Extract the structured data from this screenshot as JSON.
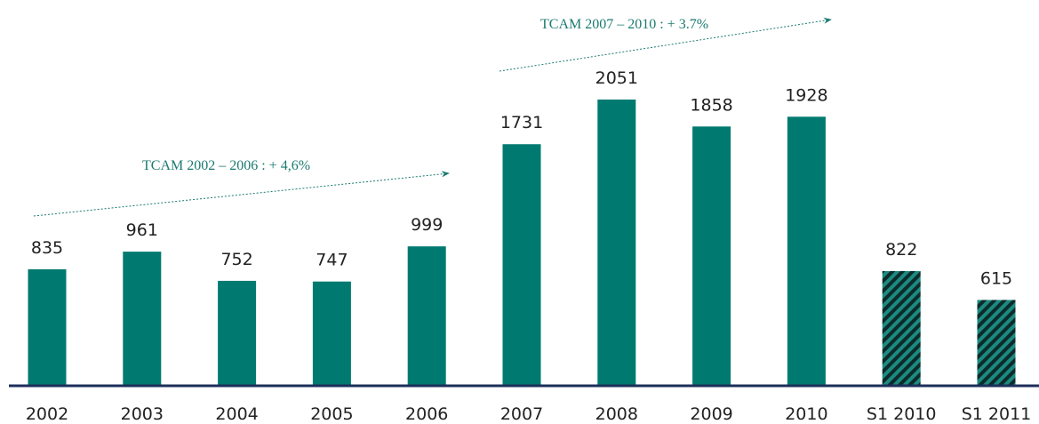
{
  "chart_data": {
    "type": "bar",
    "categories": [
      "2002",
      "2003",
      "2004",
      "2005",
      "2006",
      "2007",
      "2008",
      "2009",
      "2010",
      "S1 2010",
      "S1 2011"
    ],
    "values": [
      835,
      961,
      752,
      747,
      999,
      1731,
      2051,
      1858,
      1928,
      822,
      615
    ],
    "color": "#007a70",
    "hatch": [
      false,
      false,
      false,
      false,
      false,
      false,
      false,
      false,
      false,
      true,
      true
    ],
    "annotations": [
      {
        "text": "TCAM 2002 – 2006 : + 4,6%"
      },
      {
        "text": "TCAM 2007 – 2010 : + 3.7%"
      }
    ]
  }
}
